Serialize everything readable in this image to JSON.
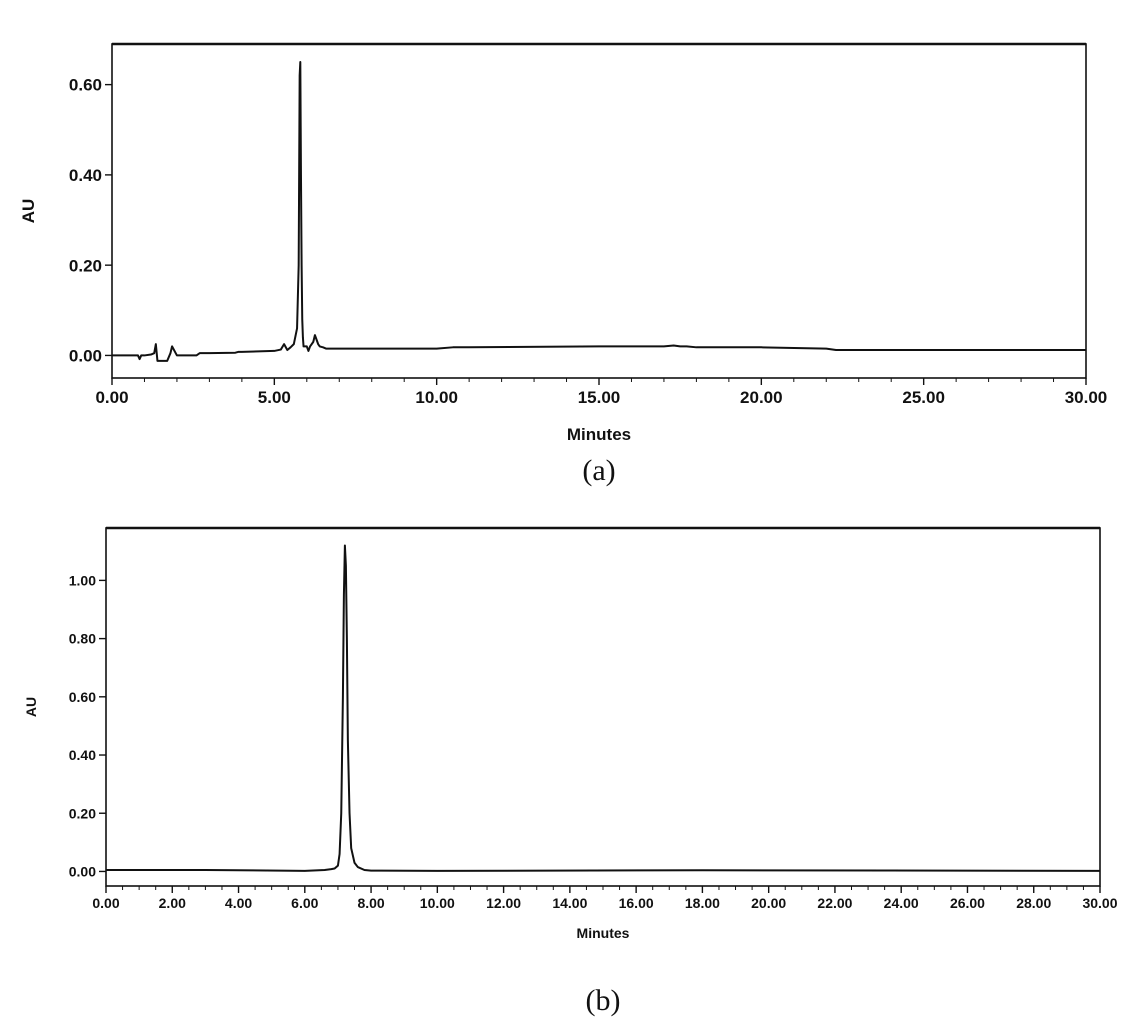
{
  "chart_data": [
    {
      "type": "line",
      "caption": "(a)",
      "xlabel": "Minutes",
      "ylabel": "AU",
      "xlim": [
        0,
        30
      ],
      "ylim": [
        -0.05,
        0.69
      ],
      "xticks": [
        "0.00",
        "5.00",
        "10.00",
        "15.00",
        "20.00",
        "25.00",
        "30.00"
      ],
      "xtick_values": [
        0,
        5,
        10,
        15,
        20,
        25,
        30
      ],
      "yticks": [
        "0.00",
        "0.20",
        "0.40",
        "0.60"
      ],
      "ytick_values": [
        0,
        0.2,
        0.4,
        0.6
      ],
      "series": [
        {
          "color": "#111111",
          "x": [
            0.0,
            0.8,
            0.85,
            0.9,
            1.0,
            1.2,
            1.3,
            1.35,
            1.4,
            1.5,
            1.6,
            1.7,
            1.8,
            1.85,
            2.0,
            2.6,
            2.7,
            3.0,
            3.8,
            3.9,
            4.0,
            5.0,
            5.2,
            5.3,
            5.4,
            5.5,
            5.6,
            5.7,
            5.75,
            5.78,
            5.8,
            5.82,
            5.84,
            5.86,
            5.88,
            5.9,
            5.95,
            6.0,
            6.05,
            6.1,
            6.2,
            6.25,
            6.3,
            6.35,
            6.4,
            6.5,
            6.6,
            7.0,
            10.0,
            10.5,
            11.0,
            15.0,
            17.0,
            17.3,
            17.5,
            17.7,
            18.0,
            20.0,
            22.0,
            22.3,
            25.0,
            30.0
          ],
          "y": [
            0.0,
            0.0,
            -0.008,
            0.0,
            0.0,
            0.002,
            0.005,
            0.025,
            -0.012,
            -0.012,
            -0.012,
            -0.012,
            0.005,
            0.02,
            0.0,
            0.0,
            0.005,
            0.005,
            0.006,
            0.008,
            0.008,
            0.01,
            0.013,
            0.025,
            0.012,
            0.018,
            0.025,
            0.06,
            0.2,
            0.62,
            0.65,
            0.4,
            0.2,
            0.08,
            0.04,
            0.02,
            0.02,
            0.02,
            0.01,
            0.02,
            0.03,
            0.045,
            0.035,
            0.025,
            0.02,
            0.018,
            0.015,
            0.015,
            0.015,
            0.018,
            0.018,
            0.02,
            0.02,
            0.022,
            0.02,
            0.02,
            0.018,
            0.018,
            0.015,
            0.012,
            0.012,
            0.012
          ]
        }
      ]
    },
    {
      "type": "line",
      "caption": "(b)",
      "xlabel": "Minutes",
      "ylabel": "AU",
      "xlim": [
        0,
        30
      ],
      "ylim": [
        -0.05,
        1.18
      ],
      "xticks": [
        "0.00",
        "2.00",
        "4.00",
        "6.00",
        "8.00",
        "10.00",
        "12.00",
        "14.00",
        "16.00",
        "18.00",
        "20.00",
        "22.00",
        "24.00",
        "26.00",
        "28.00",
        "30.00"
      ],
      "xtick_values": [
        0,
        2,
        4,
        6,
        8,
        10,
        12,
        14,
        16,
        18,
        20,
        22,
        24,
        26,
        28,
        30
      ],
      "yticks": [
        "0.00",
        "0.20",
        "0.40",
        "0.60",
        "0.80",
        "1.00"
      ],
      "ytick_values": [
        0,
        0.2,
        0.4,
        0.6,
        0.8,
        1.0
      ],
      "series": [
        {
          "color": "#111111",
          "x": [
            0.0,
            3.0,
            6.0,
            6.6,
            6.8,
            6.9,
            7.0,
            7.05,
            7.1,
            7.15,
            7.18,
            7.21,
            7.24,
            7.27,
            7.3,
            7.35,
            7.4,
            7.5,
            7.6,
            7.8,
            8.0,
            10.0,
            18.0,
            30.0
          ],
          "y": [
            0.005,
            0.005,
            0.002,
            0.005,
            0.008,
            0.01,
            0.02,
            0.06,
            0.2,
            0.6,
            0.95,
            1.12,
            1.05,
            0.8,
            0.45,
            0.2,
            0.08,
            0.03,
            0.015,
            0.005,
            0.003,
            0.002,
            0.004,
            0.002
          ]
        }
      ]
    }
  ]
}
